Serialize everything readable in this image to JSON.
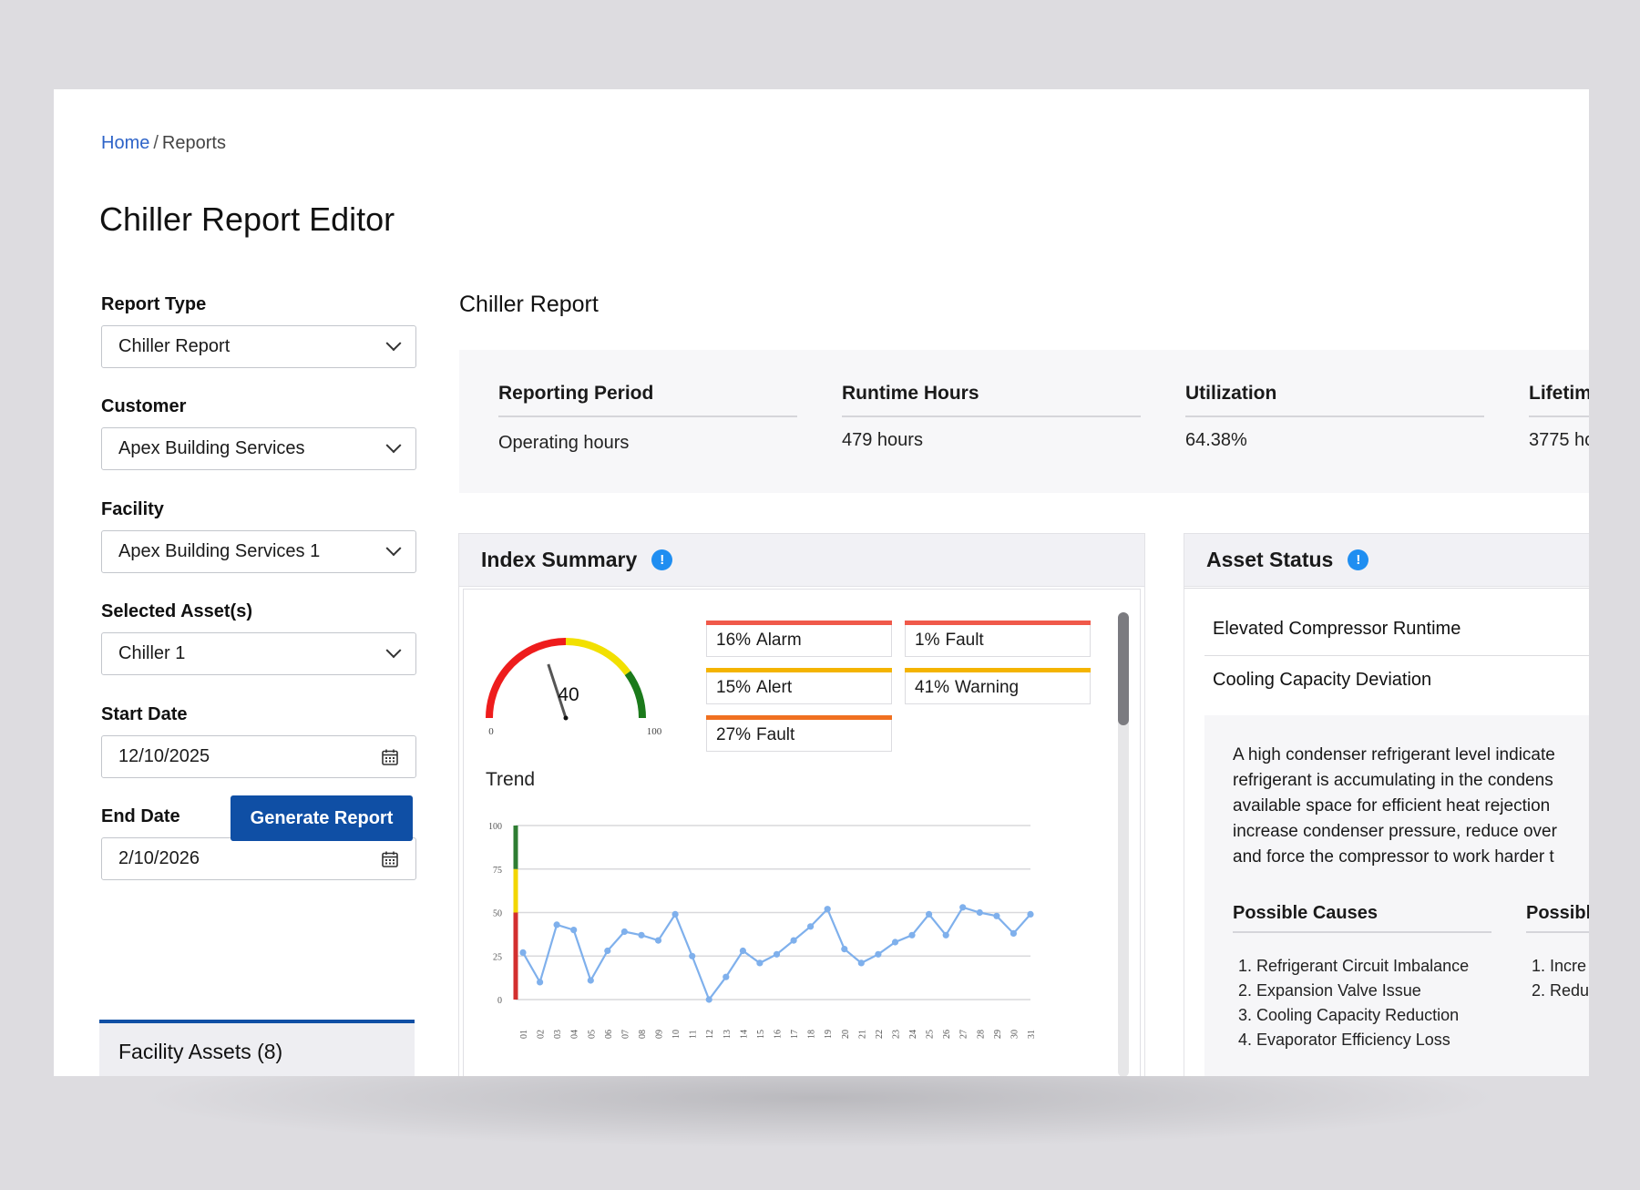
{
  "breadcrumb": {
    "home": "Home",
    "separator": "/",
    "current": "Reports"
  },
  "page_title": "Chiller Report Editor",
  "form": {
    "report_type": {
      "label": "Report Type",
      "value": "Chiller Report"
    },
    "customer": {
      "label": "Customer",
      "value": "Apex Building Services"
    },
    "facility": {
      "label": "Facility",
      "value": "Apex Building Services 1"
    },
    "assets": {
      "label": "Selected Asset(s)",
      "value": "Chiller 1"
    },
    "start_date": {
      "label": "Start Date",
      "value": "12/10/2025"
    },
    "end_date": {
      "label": "End Date",
      "value": "2/10/2026"
    },
    "generate_label": "Generate Report",
    "facility_assets_label": "Facility Assets (8)"
  },
  "report": {
    "title": "Chiller Report",
    "kpis": [
      {
        "label": "Reporting Period",
        "value": "Operating hours"
      },
      {
        "label": "Runtime Hours",
        "value": "479 hours"
      },
      {
        "label": "Utilization",
        "value": "64.38%"
      },
      {
        "label": "Lifetim",
        "value": "3775 hc"
      }
    ]
  },
  "index_summary": {
    "title": "Index Summary",
    "info_icon": "info-icon",
    "gauge": {
      "value": "40",
      "min": "0",
      "max": "100",
      "value_num": 40
    },
    "tiles": [
      {
        "pct": "16%",
        "label": "Alarm",
        "color": "#f0594a"
      },
      {
        "pct": "1%",
        "label": "Fault",
        "color": "#f0594a"
      },
      {
        "pct": "15%",
        "label": "Alert",
        "color": "#f4b400"
      },
      {
        "pct": "41%",
        "label": "Warning",
        "color": "#f4b400"
      },
      {
        "pct": "27%",
        "label": "Fault",
        "color": "#f07020"
      }
    ],
    "trend_label": "Trend"
  },
  "chart_data": {
    "type": "line",
    "title": "Trend",
    "xlabel": "",
    "ylabel": "",
    "ylim": [
      0,
      100
    ],
    "yticks": [
      "0",
      "25",
      "50",
      "75",
      "100"
    ],
    "categories": [
      "01",
      "02",
      "03",
      "04",
      "05",
      "06",
      "07",
      "08",
      "09",
      "10",
      "11",
      "12",
      "13",
      "14",
      "15",
      "16",
      "17",
      "18",
      "19",
      "20",
      "21",
      "22",
      "23",
      "24",
      "25",
      "26",
      "27",
      "28",
      "29",
      "30",
      "31"
    ],
    "series": [
      {
        "color": "#7fb0ec",
        "values": [
          27,
          10,
          43,
          40,
          11,
          28,
          39,
          37,
          34,
          49,
          25,
          0,
          13,
          28,
          21,
          26,
          34,
          42,
          52,
          29,
          21,
          26,
          33,
          37,
          49,
          37,
          53,
          50,
          48,
          38,
          49
        ]
      }
    ],
    "band_colors": [
      "#d32f2f",
      "#f2d600",
      "#2e7d32"
    ],
    "grid": true
  },
  "asset_status": {
    "title": "Asset Status",
    "issues": [
      "Elevated Compressor Runtime",
      "Cooling Capacity Deviation"
    ],
    "description_lines": [
      "A high condenser refrigerant level indicate",
      "refrigerant is accumulating in the condens",
      "available space for efficient heat rejection",
      "increase condenser pressure, reduce over",
      "and force the compressor to work harder t"
    ],
    "causes_title": "Possible Causes",
    "causes": [
      "1. Refrigerant Circuit Imbalance",
      "2. Expansion Valve Issue",
      "3. Cooling Capacity Reduction",
      "4. Evaporator Efficiency Loss"
    ],
    "second_title": "Possibl",
    "second_items": [
      "1. Incre",
      "2. Redu"
    ]
  }
}
